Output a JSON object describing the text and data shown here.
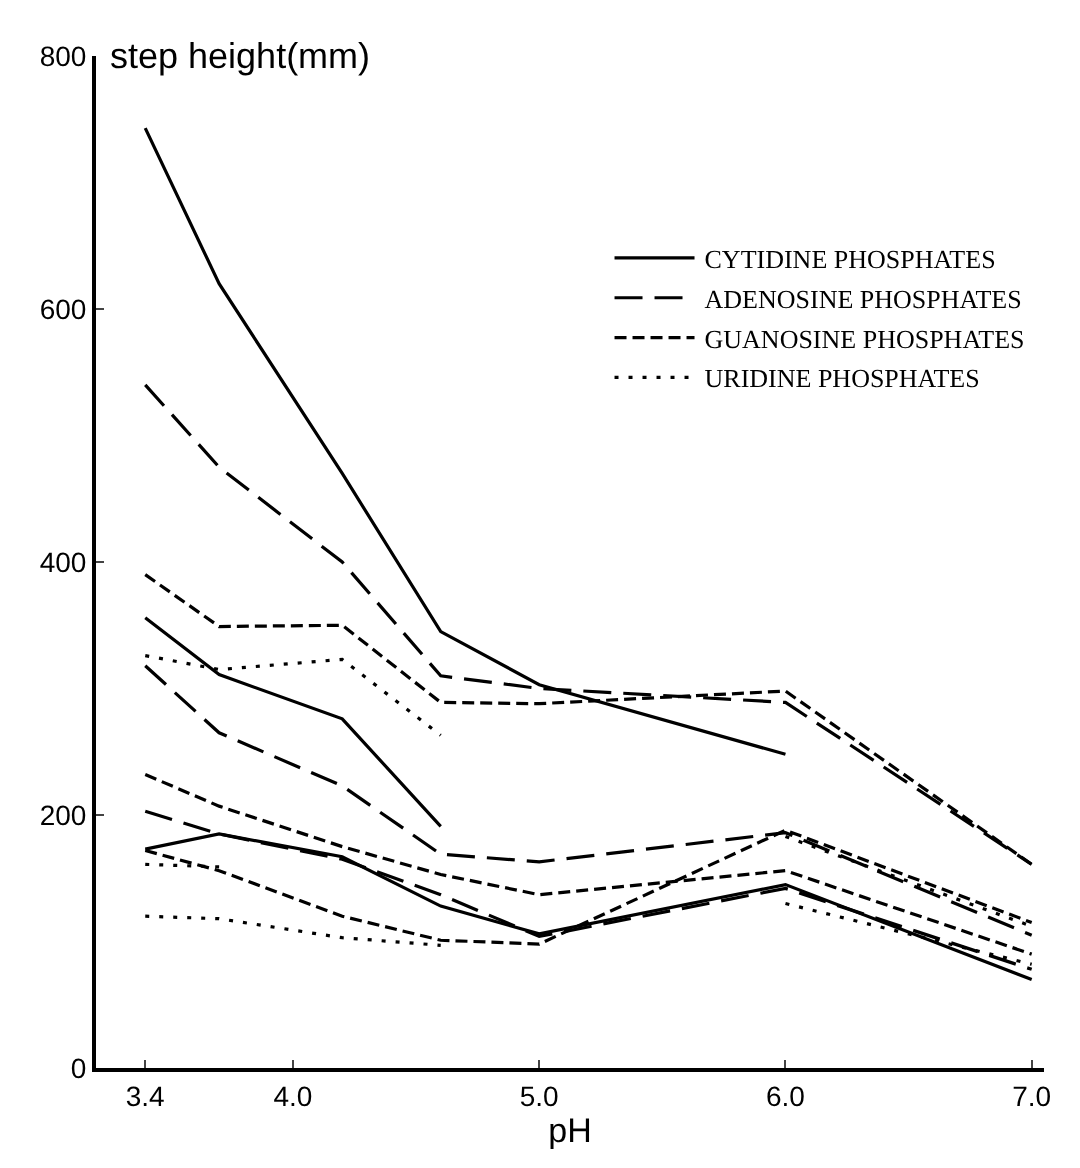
{
  "chart_data": {
    "type": "line",
    "ylabel": "step height(mm)",
    "xlabel": "pH",
    "xlim": [
      3.2,
      7.05
    ],
    "xticks": [
      3.4,
      {
        "value": 4,
        "label": "4.0"
      },
      {
        "value": 5,
        "label": "5.0"
      },
      {
        "value": 6,
        "label": "6.0"
      },
      {
        "value": 7,
        "label": "7.0"
      }
    ],
    "ylim": [
      0,
      800
    ],
    "yticks": [
      0,
      200,
      400,
      600,
      800
    ],
    "legend": "top right",
    "marker": "none",
    "series": [
      {
        "name": "CYTIDINE PHOSPHATES",
        "color": "#000000",
        "line_style": "solid",
        "x": [
          3.4,
          3.7,
          4.2,
          4.6,
          5.0,
          6.0
        ],
        "values": [
          743,
          620,
          470,
          345,
          303,
          248
        ]
      },
      {
        "name": "ADENOSINE PHOSPHATES",
        "color": "#000000",
        "line_style": "longdashed",
        "x": [
          3.4,
          3.7,
          4.2,
          4.6,
          5.0,
          6.0,
          7.0
        ],
        "values": [
          540,
          475,
          400,
          310,
          300,
          289,
          161
        ]
      },
      {
        "name": "GUANOSINE PHOSPHATES",
        "color": "#000000",
        "line_style": "dashed",
        "x": [
          3.4,
          3.7,
          4.2,
          4.6,
          5.0,
          6.0,
          7.0
        ],
        "values": [
          390,
          349,
          350,
          289,
          288,
          298,
          161
        ]
      },
      {
        "name": "URIDINE PHOSPHATES",
        "color": "#000000",
        "line_style": "dotted",
        "x": [
          3.4,
          3.7,
          4.2,
          4.6
        ],
        "values": [
          326,
          315,
          323,
          263
        ]
      },
      {
        "color": "#000000",
        "line_style": "solid",
        "x": [
          3.4,
          3.7,
          4.2,
          4.6
        ],
        "values": [
          356,
          311,
          276,
          191
        ]
      },
      {
        "color": "#000000",
        "line_style": "longdashed",
        "x": [
          3.4,
          3.7,
          4.2,
          4.6,
          5.0,
          6.0,
          7.0
        ],
        "values": [
          318,
          265,
          223,
          169,
          163,
          186,
          105
        ]
      },
      {
        "color": "#000000",
        "line_style": "dashed",
        "x": [
          3.4,
          3.7,
          4.2,
          4.6,
          5.0,
          6.0,
          7.0
        ],
        "values": [
          232,
          207,
          175,
          153,
          137,
          156,
          90
        ]
      },
      {
        "color": "#000000",
        "line_style": "longdashed",
        "x": [
          3.4,
          3.7,
          4.2,
          4.6,
          5.0,
          6.0,
          7.0
        ],
        "values": [
          203,
          185,
          165,
          137,
          104,
          142,
          78
        ]
      },
      {
        "color": "#000000",
        "line_style": "solid",
        "x": [
          3.4,
          3.7,
          4.2,
          4.6,
          5.0,
          6.0,
          7.0
        ],
        "values": [
          173,
          185,
          167,
          128,
          106,
          145,
          70
        ]
      },
      {
        "color": "#000000",
        "line_style": "dashed",
        "x": [
          3.4,
          3.7,
          4.2,
          4.6,
          5.0,
          6.0,
          7.0
        ],
        "values": [
          172,
          156,
          120,
          101,
          98,
          188,
          115
        ]
      },
      {
        "color": "#000000",
        "line_style": "dotted",
        "x": [
          3.4,
          3.7
        ],
        "values": [
          161,
          159
        ]
      },
      {
        "color": "#000000",
        "line_style": "dotted",
        "x": [
          3.4,
          3.7,
          4.2,
          4.6
        ],
        "values": [
          120,
          118,
          103,
          97
        ]
      },
      {
        "color": "#000000",
        "line_style": "dotted",
        "x": [
          6.0,
          7.0
        ],
        "values": [
          183,
          112
        ]
      },
      {
        "color": "#000000",
        "line_style": "dotted",
        "x": [
          6.0,
          7.0
        ],
        "values": [
          130,
          82
        ]
      }
    ]
  }
}
